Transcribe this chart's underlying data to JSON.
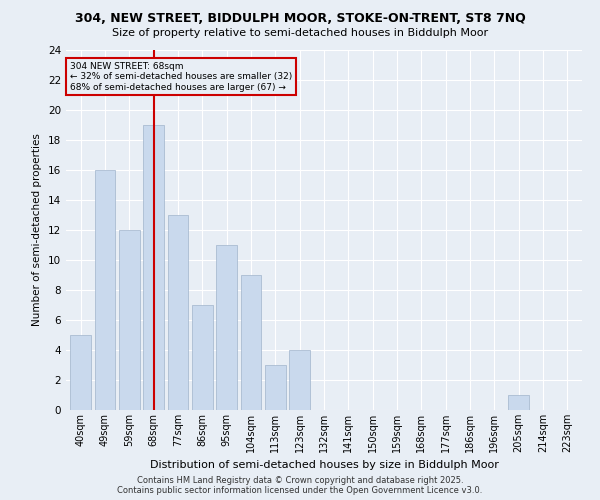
{
  "title_line1": "304, NEW STREET, BIDDULPH MOOR, STOKE-ON-TRENT, ST8 7NQ",
  "title_line2": "Size of property relative to semi-detached houses in Biddulph Moor",
  "xlabel": "Distribution of semi-detached houses by size in Biddulph Moor",
  "ylabel": "Number of semi-detached properties",
  "categories": [
    "40sqm",
    "49sqm",
    "59sqm",
    "68sqm",
    "77sqm",
    "86sqm",
    "95sqm",
    "104sqm",
    "113sqm",
    "123sqm",
    "132sqm",
    "141sqm",
    "150sqm",
    "159sqm",
    "168sqm",
    "177sqm",
    "186sqm",
    "196sqm",
    "205sqm",
    "214sqm",
    "223sqm"
  ],
  "values": [
    5,
    16,
    12,
    19,
    13,
    7,
    11,
    9,
    3,
    4,
    0,
    0,
    0,
    0,
    0,
    0,
    0,
    0,
    1,
    0,
    0
  ],
  "bar_color": "#c9d9ed",
  "bar_edge_color": "#a0b4cc",
  "highlight_index": 3,
  "highlight_line_color": "#cc0000",
  "annotation_line1": "304 NEW STREET: 68sqm",
  "annotation_line2": "← 32% of semi-detached houses are smaller (32)",
  "annotation_line3": "68% of semi-detached houses are larger (67) →",
  "annotation_box_color": "#cc0000",
  "ylim": [
    0,
    24
  ],
  "yticks": [
    0,
    2,
    4,
    6,
    8,
    10,
    12,
    14,
    16,
    18,
    20,
    22,
    24
  ],
  "footer_line1": "Contains HM Land Registry data © Crown copyright and database right 2025.",
  "footer_line2": "Contains public sector information licensed under the Open Government Licence v3.0.",
  "bg_color": "#e8eef5",
  "grid_color": "#ffffff"
}
